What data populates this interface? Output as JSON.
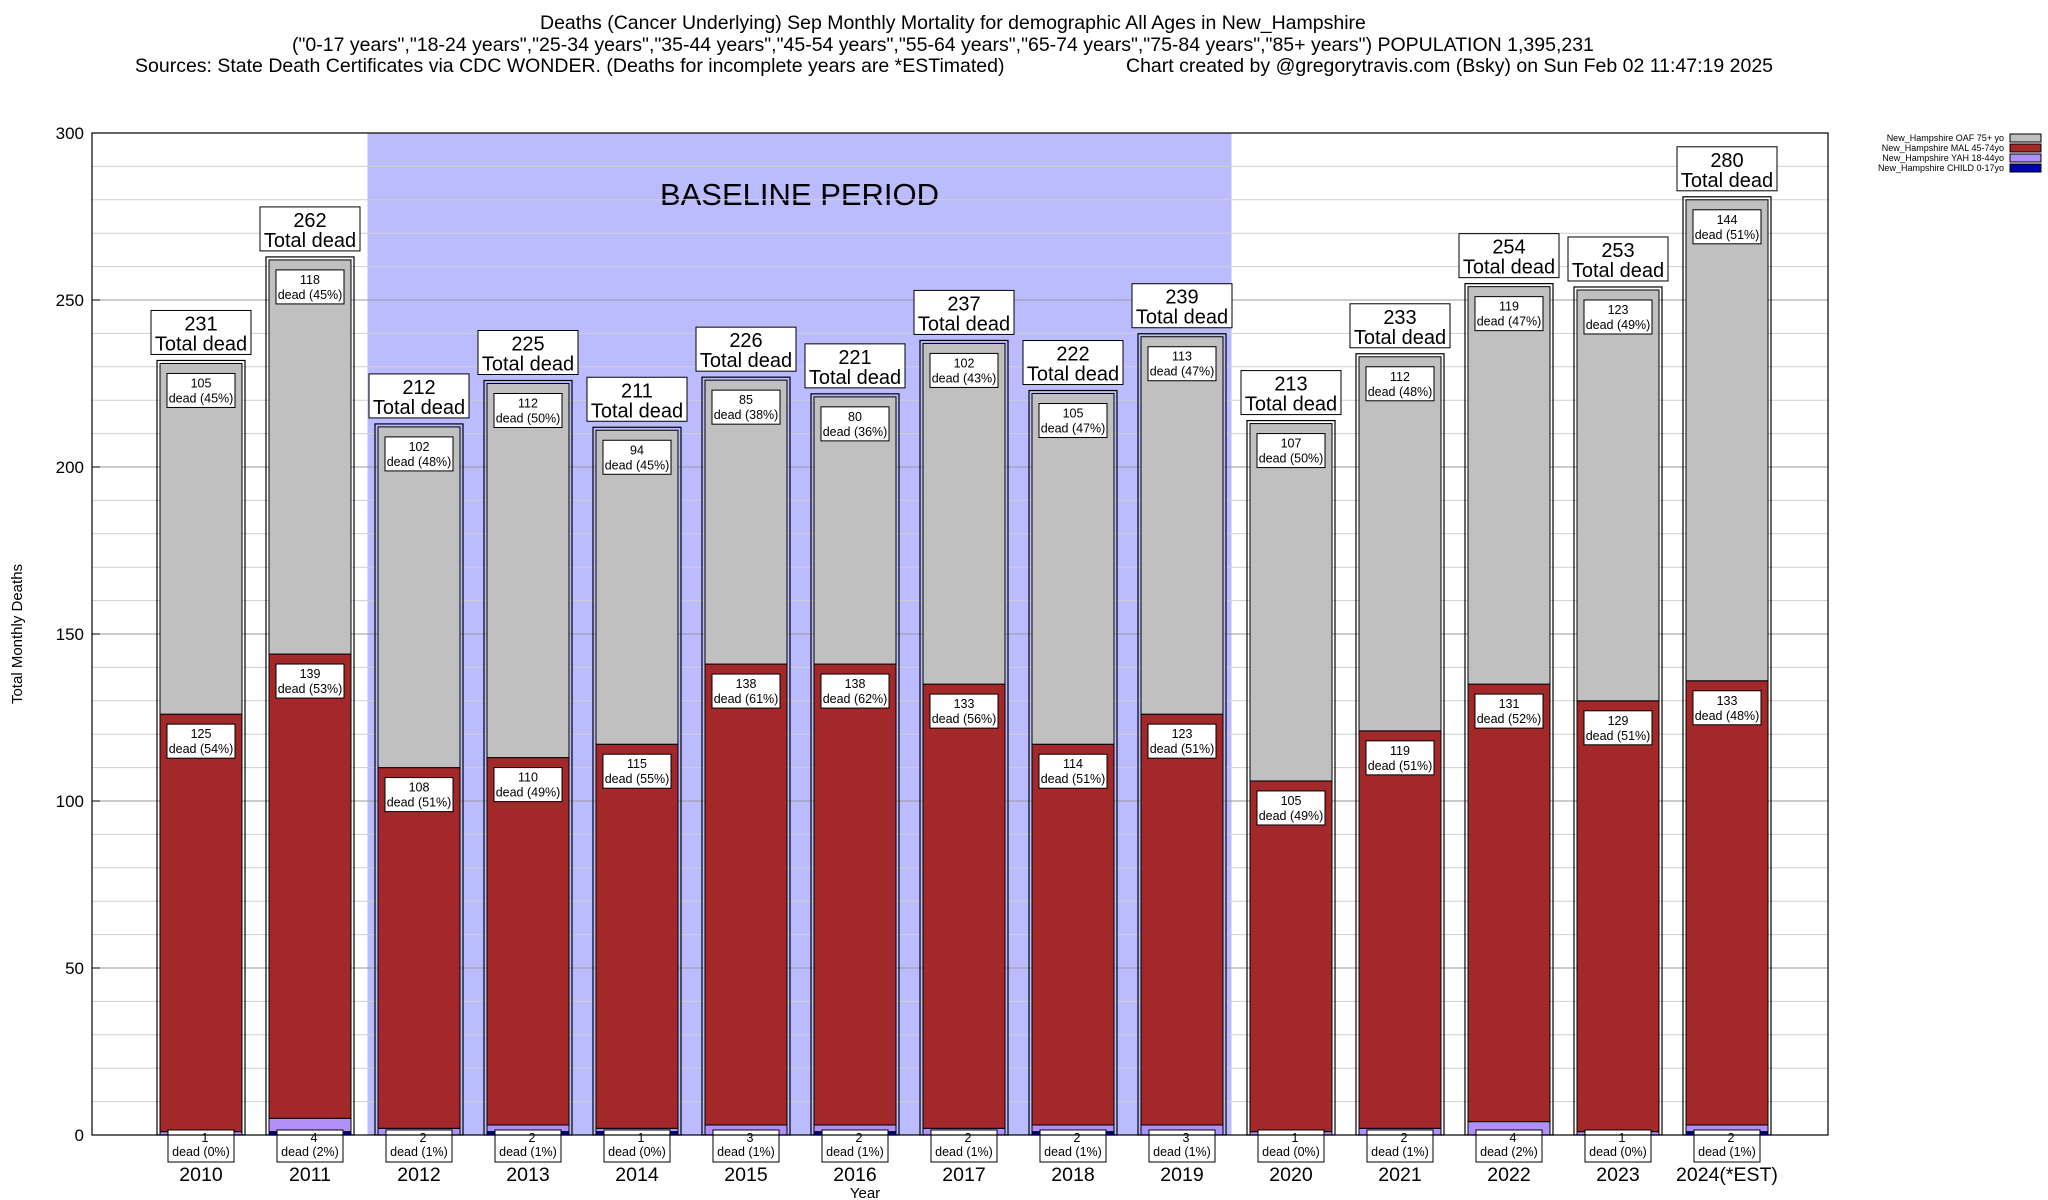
{
  "title": {
    "line1": "Deaths (Cancer Underlying) Sep Monthly Mortality for demographic All Ages in New_Hampshire",
    "line2": "(\"0-17 years\",\"18-24 years\",\"25-34 years\",\"35-44 years\",\"45-54 years\",\"55-64 years\",\"65-74 years\",\"75-84 years\",\"85+ years\") POPULATION 1,395,231",
    "line3_left": "Sources: State Death Certificates via CDC WONDER. (Deaths for incomplete years are *ESTimated)",
    "line3_right": "Chart created by @gregorytravis.com (Bsky) on Sun Feb 02 11:47:19 2025"
  },
  "chart_data": {
    "type": "bar",
    "stacked": true,
    "xlabel": "Year",
    "ylabel": "Total Monthly Deaths",
    "ylim": [
      0,
      300
    ],
    "yticks": [
      0,
      50,
      100,
      150,
      200,
      250,
      300
    ],
    "grid": "horizontal",
    "legend_position": "top-right",
    "baseline_label": "BASELINE PERIOD",
    "baseline_range": [
      "2012",
      "2019"
    ],
    "categories": [
      "2010",
      "2011",
      "2012",
      "2013",
      "2014",
      "2015",
      "2016",
      "2017",
      "2018",
      "2019",
      "2020",
      "2021",
      "2022",
      "2023",
      "2024(*EST)"
    ],
    "totals": [
      231,
      262,
      212,
      225,
      211,
      226,
      221,
      237,
      222,
      239,
      213,
      233,
      254,
      253,
      280
    ],
    "total_label_suffix": "Total dead",
    "segment_label_word": "dead",
    "series": [
      {
        "name": "New_Hampshire CHILD 0-17yo",
        "color": "#0000b0",
        "values": [
          0,
          1,
          0,
          1,
          1,
          0,
          1,
          0,
          1,
          0,
          0,
          0,
          0,
          0,
          1
        ]
      },
      {
        "name": "New_Hampshire YAH 18-44yo",
        "color": "#b090f8",
        "values": [
          1,
          4,
          2,
          2,
          1,
          3,
          2,
          2,
          2,
          3,
          1,
          2,
          4,
          1,
          2
        ],
        "labels": [
          "(0%)",
          "(2%)",
          "(1%)",
          "(1%)",
          "(0%)",
          "(1%)",
          "(1%)",
          "(1%)",
          "(1%)",
          "(1%)",
          "(0%)",
          "(1%)",
          "(2%)",
          "(0%)",
          "(1%)"
        ]
      },
      {
        "name": "New_Hampshire MAL 45-74yo",
        "color": "#a2282a",
        "values": [
          125,
          139,
          108,
          110,
          115,
          138,
          138,
          133,
          114,
          123,
          105,
          119,
          131,
          129,
          133
        ],
        "labels": [
          "(54%)",
          "(53%)",
          "(51%)",
          "(49%)",
          "(55%)",
          "(61%)",
          "(62%)",
          "(56%)",
          "(51%)",
          "(51%)",
          "(49%)",
          "(51%)",
          "(52%)",
          "(51%)",
          "(48%)"
        ]
      },
      {
        "name": "New_Hampshire OAF 75+ yo",
        "color": "#c0c0c0",
        "values": [
          105,
          118,
          102,
          112,
          94,
          85,
          80,
          102,
          105,
          113,
          107,
          112,
          119,
          123,
          144
        ],
        "labels": [
          "(45%)",
          "(45%)",
          "(48%)",
          "(50%)",
          "(45%)",
          "(38%)",
          "(36%)",
          "(43%)",
          "(47%)",
          "(47%)",
          "(50%)",
          "(48%)",
          "(47%)",
          "(49%)",
          "(51%)"
        ]
      }
    ],
    "legend_order": [
      "New_Hampshire OAF 75+ yo",
      "New_Hampshire MAL 45-74yo",
      "New_Hampshire YAH 18-44yo",
      "New_Hampshire CHILD 0-17yo"
    ]
  }
}
